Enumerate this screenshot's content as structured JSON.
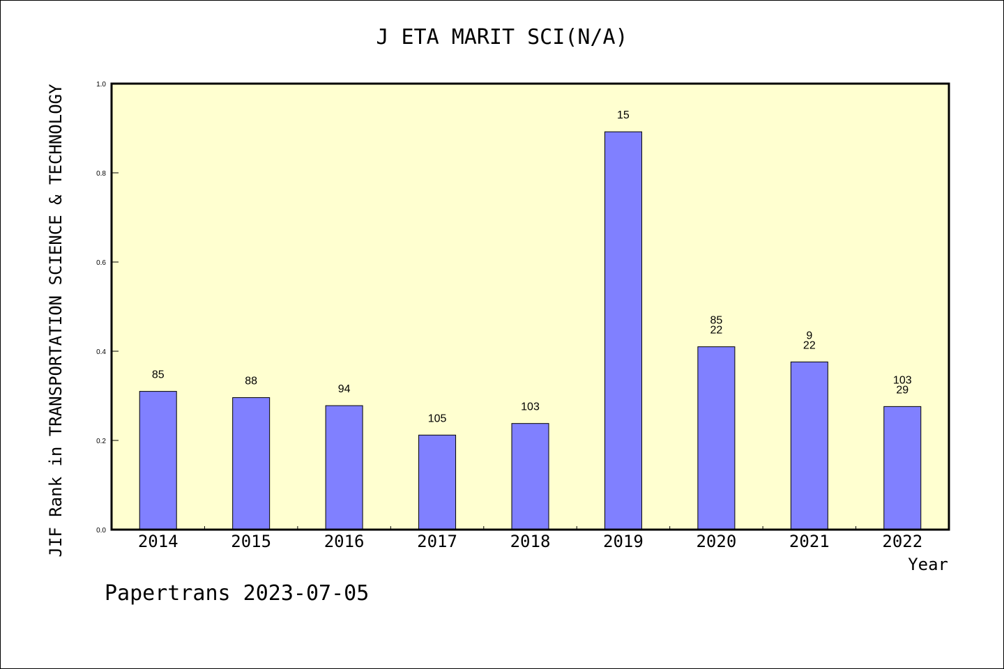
{
  "title": "J ETA MARIT SCI(N/A)",
  "footer": "Papertrans 2023-07-05",
  "colors": {
    "plot_background": "#ffffd0",
    "bar_fill": "#8080ff",
    "axis": "#000000"
  },
  "chart_data": {
    "type": "bar",
    "title": "J ETA MARIT SCI(N/A)",
    "xlabel": "Year",
    "ylabel": "JIF Rank in TRANSPORTATION SCIENCE & TECHNOLOGY",
    "ylim": [
      0,
      1.0
    ],
    "yticks": [
      "0.0",
      "0.2",
      "0.4",
      "0.6",
      "0.8",
      "1.0"
    ],
    "grid": false,
    "categories": [
      "2014",
      "2015",
      "2016",
      "2017",
      "2018",
      "2019",
      "2020",
      "2021",
      "2022"
    ],
    "values": [
      0.31,
      0.296,
      0.278,
      0.212,
      0.238,
      0.892,
      0.41,
      0.376,
      0.276
    ],
    "bar_labels": [
      [
        "85"
      ],
      [
        "88"
      ],
      [
        "94"
      ],
      [
        "105"
      ],
      [
        "103"
      ],
      [
        "15"
      ],
      [
        "85",
        "22"
      ],
      [
        "9",
        "22"
      ],
      [
        "103",
        "29"
      ]
    ]
  }
}
